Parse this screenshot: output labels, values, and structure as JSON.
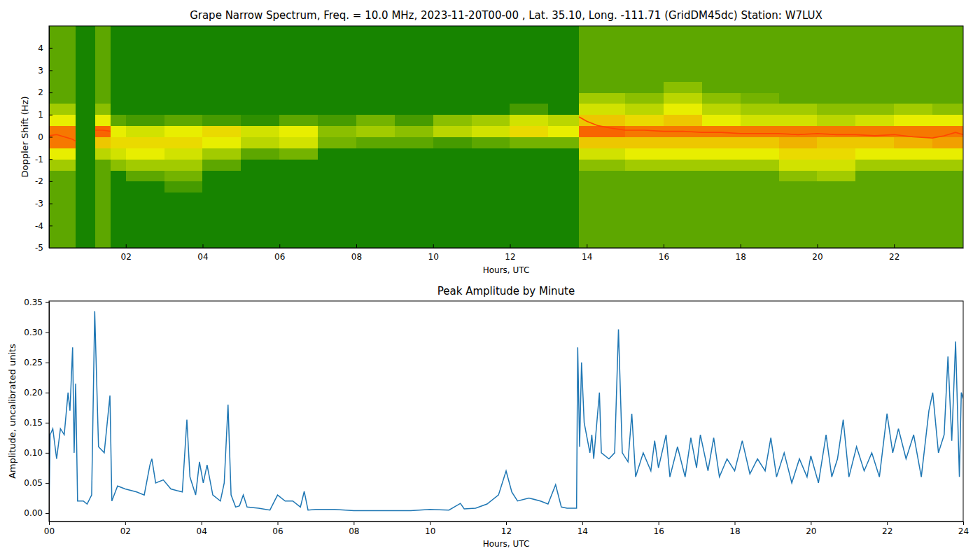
{
  "chart_data": [
    {
      "type": "heatmap",
      "title": "Grape Narrow Spectrum, Freq. = 10.0 MHz, 2023-11-20T00-00 , Lat.  35.10, Long. -111.71 (GridDM45dc) Station: W7LUX",
      "xlabel": "Hours, UTC",
      "ylabel": "Doppler Shift (Hz)",
      "x_bins": [
        0,
        0.7,
        1.2,
        1.6,
        2,
        3,
        4,
        5,
        6,
        7,
        8,
        9,
        10,
        11,
        12,
        13,
        13.8,
        15,
        16,
        17,
        18,
        19,
        20,
        21,
        22,
        23,
        23.8
      ],
      "y_bins": [
        -5,
        -4.5,
        -4,
        -3.5,
        -3,
        -2.5,
        -2,
        -1.5,
        -1,
        -0.5,
        0,
        0.5,
        1,
        1.5,
        2,
        2.5,
        3,
        3.5,
        4,
        4.5,
        5
      ],
      "cells": [
        [
          0.2,
          0.05,
          0.2,
          0.05,
          0.05,
          0.05,
          0.05,
          0.05,
          0.05,
          0.05,
          0.05,
          0.05,
          0.05,
          0.05,
          0.05,
          0.05,
          0.2,
          0.2,
          0.2,
          0.2,
          0.2,
          0.2,
          0.2,
          0.2,
          0.2,
          0.2
        ],
        [
          0.2,
          0.05,
          0.2,
          0.05,
          0.05,
          0.05,
          0.05,
          0.05,
          0.05,
          0.05,
          0.05,
          0.05,
          0.05,
          0.05,
          0.05,
          0.05,
          0.2,
          0.2,
          0.2,
          0.2,
          0.2,
          0.2,
          0.2,
          0.2,
          0.2,
          0.2
        ],
        [
          0.2,
          0.05,
          0.2,
          0.05,
          0.05,
          0.05,
          0.05,
          0.05,
          0.05,
          0.05,
          0.05,
          0.05,
          0.05,
          0.05,
          0.05,
          0.05,
          0.2,
          0.2,
          0.2,
          0.2,
          0.2,
          0.2,
          0.2,
          0.2,
          0.2,
          0.2
        ],
        [
          0.2,
          0.05,
          0.2,
          0.05,
          0.05,
          0.05,
          0.05,
          0.05,
          0.05,
          0.05,
          0.05,
          0.05,
          0.05,
          0.05,
          0.05,
          0.05,
          0.2,
          0.2,
          0.2,
          0.2,
          0.2,
          0.2,
          0.2,
          0.2,
          0.2,
          0.2
        ],
        [
          0.2,
          0.05,
          0.2,
          0.05,
          0.05,
          0.05,
          0.05,
          0.05,
          0.05,
          0.05,
          0.05,
          0.05,
          0.05,
          0.05,
          0.05,
          0.05,
          0.2,
          0.2,
          0.2,
          0.2,
          0.2,
          0.2,
          0.2,
          0.2,
          0.2,
          0.2
        ],
        [
          0.2,
          0.05,
          0.2,
          0.05,
          0.05,
          0.15,
          0.05,
          0.05,
          0.05,
          0.05,
          0.05,
          0.05,
          0.05,
          0.05,
          0.05,
          0.05,
          0.2,
          0.2,
          0.2,
          0.2,
          0.2,
          0.2,
          0.2,
          0.2,
          0.2,
          0.2
        ],
        [
          0.2,
          0.05,
          0.2,
          0.05,
          0.2,
          0.25,
          0.05,
          0.05,
          0.05,
          0.05,
          0.05,
          0.05,
          0.05,
          0.05,
          0.05,
          0.05,
          0.2,
          0.2,
          0.2,
          0.2,
          0.2,
          0.3,
          0.35,
          0.2,
          0.2,
          0.2
        ],
        [
          0.35,
          0.05,
          0.2,
          0.3,
          0.35,
          0.35,
          0.2,
          0.05,
          0.05,
          0.05,
          0.05,
          0.05,
          0.05,
          0.05,
          0.05,
          0.05,
          0.3,
          0.35,
          0.35,
          0.35,
          0.35,
          0.45,
          0.45,
          0.35,
          0.35,
          0.35
        ],
        [
          0.5,
          0.05,
          0.4,
          0.45,
          0.5,
          0.45,
          0.35,
          0.2,
          0.25,
          0.05,
          0.05,
          0.05,
          0.05,
          0.05,
          0.05,
          0.05,
          0.45,
          0.5,
          0.5,
          0.5,
          0.5,
          0.55,
          0.55,
          0.5,
          0.5,
          0.5
        ],
        [
          0.8,
          0.05,
          0.6,
          0.55,
          0.55,
          0.55,
          0.5,
          0.4,
          0.45,
          0.25,
          0.2,
          0.2,
          0.15,
          0.2,
          0.25,
          0.25,
          0.6,
          0.6,
          0.6,
          0.6,
          0.6,
          0.65,
          0.6,
          0.6,
          0.65,
          0.7
        ],
        [
          0.8,
          0.05,
          0.85,
          0.5,
          0.45,
          0.5,
          0.55,
          0.45,
          0.5,
          0.3,
          0.35,
          0.3,
          0.4,
          0.45,
          0.55,
          0.5,
          0.85,
          0.8,
          0.8,
          0.8,
          0.8,
          0.8,
          0.8,
          0.8,
          0.8,
          0.8
        ],
        [
          0.5,
          0.05,
          0.5,
          0.2,
          0.15,
          0.2,
          0.15,
          0.1,
          0.2,
          0.15,
          0.25,
          0.15,
          0.3,
          0.35,
          0.45,
          0.4,
          0.6,
          0.55,
          0.6,
          0.5,
          0.45,
          0.45,
          0.4,
          0.45,
          0.5,
          0.5
        ],
        [
          0.35,
          0.05,
          0.3,
          0.05,
          0.05,
          0.05,
          0.05,
          0.05,
          0.05,
          0.05,
          0.05,
          0.05,
          0.05,
          0.05,
          0.15,
          0.05,
          0.45,
          0.4,
          0.5,
          0.4,
          0.35,
          0.35,
          0.3,
          0.3,
          0.35,
          0.3
        ],
        [
          0.2,
          0.05,
          0.2,
          0.05,
          0.05,
          0.05,
          0.05,
          0.05,
          0.05,
          0.05,
          0.05,
          0.05,
          0.05,
          0.05,
          0.05,
          0.05,
          0.35,
          0.3,
          0.4,
          0.3,
          0.25,
          0.2,
          0.2,
          0.2,
          0.2,
          0.2
        ],
        [
          0.2,
          0.05,
          0.2,
          0.05,
          0.05,
          0.05,
          0.05,
          0.05,
          0.05,
          0.05,
          0.05,
          0.05,
          0.05,
          0.05,
          0.05,
          0.05,
          0.2,
          0.2,
          0.3,
          0.2,
          0.2,
          0.2,
          0.2,
          0.2,
          0.2,
          0.2
        ],
        [
          0.2,
          0.05,
          0.2,
          0.05,
          0.05,
          0.05,
          0.05,
          0.05,
          0.05,
          0.05,
          0.05,
          0.05,
          0.05,
          0.05,
          0.05,
          0.05,
          0.2,
          0.2,
          0.2,
          0.2,
          0.2,
          0.2,
          0.2,
          0.2,
          0.2,
          0.2
        ],
        [
          0.2,
          0.05,
          0.2,
          0.05,
          0.05,
          0.05,
          0.05,
          0.05,
          0.05,
          0.05,
          0.05,
          0.05,
          0.05,
          0.05,
          0.05,
          0.05,
          0.2,
          0.2,
          0.2,
          0.2,
          0.2,
          0.2,
          0.2,
          0.2,
          0.2,
          0.2
        ],
        [
          0.2,
          0.05,
          0.2,
          0.05,
          0.05,
          0.05,
          0.05,
          0.05,
          0.05,
          0.05,
          0.05,
          0.05,
          0.05,
          0.05,
          0.05,
          0.05,
          0.2,
          0.2,
          0.2,
          0.2,
          0.2,
          0.2,
          0.2,
          0.2,
          0.2,
          0.2
        ],
        [
          0.2,
          0.05,
          0.2,
          0.05,
          0.05,
          0.05,
          0.05,
          0.05,
          0.05,
          0.05,
          0.05,
          0.05,
          0.05,
          0.05,
          0.05,
          0.05,
          0.2,
          0.2,
          0.2,
          0.2,
          0.2,
          0.2,
          0.2,
          0.2,
          0.2,
          0.2
        ],
        [
          0.2,
          0.05,
          0.2,
          0.05,
          0.05,
          0.05,
          0.05,
          0.05,
          0.05,
          0.05,
          0.05,
          0.05,
          0.05,
          0.05,
          0.05,
          0.05,
          0.2,
          0.2,
          0.2,
          0.2,
          0.2,
          0.2,
          0.2,
          0.2,
          0.2,
          0.2
        ]
      ],
      "zlim": [
        0,
        1
      ],
      "series": [
        {
          "type": "line",
          "color": "#ff4500",
          "x": [
            0,
            0.2,
            0.4,
            0.6,
            0.7,
            0.71,
            1.2,
            1.4,
            1.6,
            1.61,
            13.8,
            14,
            14.3,
            14.6,
            15,
            15.5,
            16,
            16.5,
            17,
            17.5,
            18,
            18.5,
            19,
            19.5,
            20,
            20.5,
            21,
            21.5,
            22,
            22.5,
            23,
            23.3,
            23.6,
            23.8
          ],
          "values": [
            0.05,
            0.1,
            0,
            -0.1,
            -0.2,
            null,
            0.3,
            0.3,
            0.25,
            null,
            0.9,
            0.7,
            0.5,
            0.4,
            0.3,
            0.3,
            0.25,
            0.25,
            0.2,
            0.2,
            0.15,
            0.15,
            0.15,
            0.1,
            0.15,
            0.1,
            0.1,
            0.05,
            0.1,
            0,
            -0.05,
            0.05,
            0.2,
            0.1
          ]
        }
      ],
      "xlim": [
        0,
        23.8
      ],
      "ylim": [
        -5,
        5
      ],
      "xticks": [
        {
          "value": 2,
          "label": "02"
        },
        {
          "value": 4,
          "label": "04"
        },
        {
          "value": 6,
          "label": "06"
        },
        {
          "value": 8,
          "label": "08"
        },
        10,
        12,
        14,
        16,
        18,
        20,
        22
      ],
      "yticks": [
        -5,
        -4,
        -3,
        -2,
        -1,
        0,
        1,
        2,
        3,
        4
      ]
    },
    {
      "type": "line",
      "title": "Peak Amplitude by Minute",
      "xlabel": "Hours, UTC",
      "ylabel": "Amplitude, uncalibrated units",
      "color": "#1f77b4",
      "x": [
        0.0,
        0.03,
        0.1,
        0.2,
        0.3,
        0.4,
        0.5,
        0.55,
        0.62,
        0.66,
        0.7,
        0.75,
        0.9,
        1.0,
        1.12,
        1.2,
        1.3,
        1.45,
        1.6,
        1.65,
        1.8,
        2.0,
        2.3,
        2.5,
        2.65,
        2.7,
        2.8,
        3.0,
        3.2,
        3.5,
        3.62,
        3.7,
        3.85,
        3.95,
        4.05,
        4.15,
        4.3,
        4.5,
        4.6,
        4.7,
        4.78,
        4.9,
        5.0,
        5.1,
        5.2,
        5.5,
        5.8,
        6.0,
        6.2,
        6.4,
        6.6,
        6.7,
        6.8,
        7.0,
        7.5,
        8.0,
        8.5,
        9.0,
        9.5,
        10.0,
        10.5,
        10.8,
        10.9,
        11.2,
        11.5,
        11.8,
        12.0,
        12.15,
        12.3,
        12.6,
        12.9,
        13.1,
        13.3,
        13.45,
        13.6,
        13.85,
        13.88,
        13.93,
        13.98,
        14.05,
        14.2,
        14.25,
        14.3,
        14.45,
        14.5,
        14.7,
        14.85,
        14.95,
        15.05,
        15.2,
        15.3,
        15.4,
        15.6,
        15.8,
        15.9,
        16.0,
        16.2,
        16.3,
        16.5,
        16.7,
        16.85,
        17.0,
        17.1,
        17.3,
        17.45,
        17.6,
        17.8,
        18.0,
        18.2,
        18.4,
        18.6,
        18.8,
        18.95,
        19.1,
        19.3,
        19.5,
        19.7,
        19.9,
        20.0,
        20.2,
        20.4,
        20.55,
        20.7,
        20.85,
        21.0,
        21.2,
        21.4,
        21.6,
        21.8,
        22.0,
        22.15,
        22.3,
        22.5,
        22.7,
        22.9,
        23.1,
        23.2,
        23.35,
        23.5,
        23.6,
        23.7,
        23.8,
        23.9,
        23.95,
        24.0
      ],
      "values": [
        0.0,
        0.13,
        0.14,
        0.09,
        0.14,
        0.13,
        0.2,
        0.17,
        0.275,
        0.1,
        0.215,
        0.02,
        0.02,
        0.015,
        0.03,
        0.335,
        0.11,
        0.1,
        0.195,
        0.02,
        0.045,
        0.04,
        0.035,
        0.03,
        0.08,
        0.09,
        0.05,
        0.055,
        0.04,
        0.035,
        0.155,
        0.06,
        0.03,
        0.085,
        0.05,
        0.08,
        0.03,
        0.02,
        0.05,
        0.18,
        0.03,
        0.01,
        0.012,
        0.03,
        0.01,
        0.008,
        0.005,
        0.03,
        0.02,
        0.02,
        0.01,
        0.036,
        0.005,
        0.006,
        0.006,
        0.004,
        0.004,
        0.004,
        0.004,
        0.006,
        0.005,
        0.016,
        0.007,
        0.008,
        0.015,
        0.03,
        0.07,
        0.035,
        0.02,
        0.025,
        0.02,
        0.015,
        0.047,
        0.01,
        0.008,
        0.008,
        0.275,
        0.11,
        0.25,
        0.15,
        0.1,
        0.13,
        0.09,
        0.2,
        0.1,
        0.09,
        0.1,
        0.305,
        0.1,
        0.085,
        0.165,
        0.06,
        0.1,
        0.07,
        0.12,
        0.075,
        0.13,
        0.06,
        0.11,
        0.06,
        0.125,
        0.075,
        0.13,
        0.07,
        0.125,
        0.06,
        0.09,
        0.07,
        0.12,
        0.065,
        0.09,
        0.07,
        0.125,
        0.06,
        0.1,
        0.05,
        0.09,
        0.06,
        0.095,
        0.05,
        0.13,
        0.06,
        0.09,
        0.155,
        0.06,
        0.11,
        0.07,
        0.1,
        0.06,
        0.165,
        0.1,
        0.14,
        0.09,
        0.13,
        0.06,
        0.17,
        0.2,
        0.1,
        0.13,
        0.26,
        0.12,
        0.285,
        0.06,
        0.2,
        0.19
      ],
      "xlim": [
        0,
        24
      ],
      "ylim": [
        -0.014,
        0.352
      ],
      "xticks": [
        {
          "value": 0,
          "label": "00"
        },
        {
          "value": 2,
          "label": "02"
        },
        {
          "value": 4,
          "label": "04"
        },
        {
          "value": 6,
          "label": "06"
        },
        {
          "value": 8,
          "label": "08"
        },
        10,
        12,
        14,
        16,
        18,
        20,
        22,
        24
      ],
      "yticks": [
        {
          "value": 0,
          "label": "0.00"
        },
        0.05,
        {
          "value": 0.1,
          "label": "0.10"
        },
        0.15,
        {
          "value": 0.2,
          "label": "0.20"
        },
        0.25,
        {
          "value": 0.3,
          "label": "0.30"
        },
        0.35
      ]
    }
  ]
}
